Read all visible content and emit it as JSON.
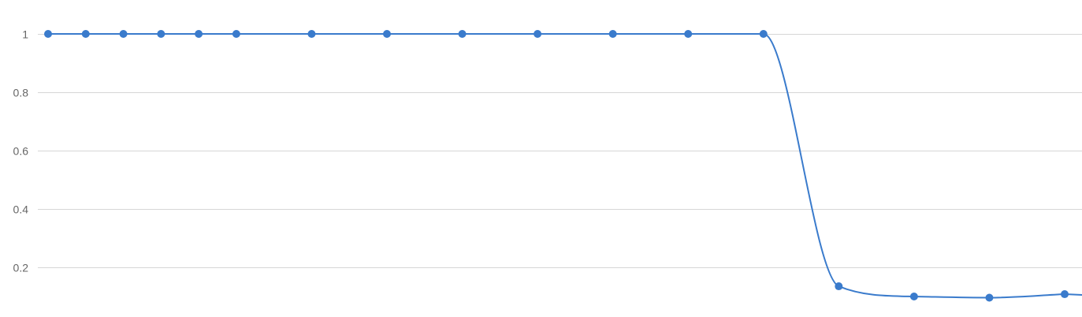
{
  "chart_data": {
    "type": "line",
    "title": "",
    "xlabel": "",
    "ylabel": "",
    "grid": true,
    "ylim": [
      0,
      1.08
    ],
    "y_ticks": [
      {
        "value": 0.2,
        "label": "0.2"
      },
      {
        "value": 0.4,
        "label": "0.4"
      },
      {
        "value": 0.6,
        "label": "0.6"
      },
      {
        "value": 0.8,
        "label": "0.8"
      },
      {
        "value": 1.0,
        "label": "1"
      }
    ],
    "series": [
      {
        "color": "#3a7bcc",
        "x": [
          0.5,
          1,
          1.5,
          2,
          2.5,
          3,
          4,
          5,
          6,
          7,
          8,
          9,
          10,
          11,
          12,
          13,
          14
        ],
        "y": [
          1,
          1,
          1,
          1,
          1,
          1,
          1,
          1,
          1,
          1,
          1,
          1,
          1,
          0.135,
          0.1,
          0.096,
          0.108
        ]
      }
    ]
  }
}
